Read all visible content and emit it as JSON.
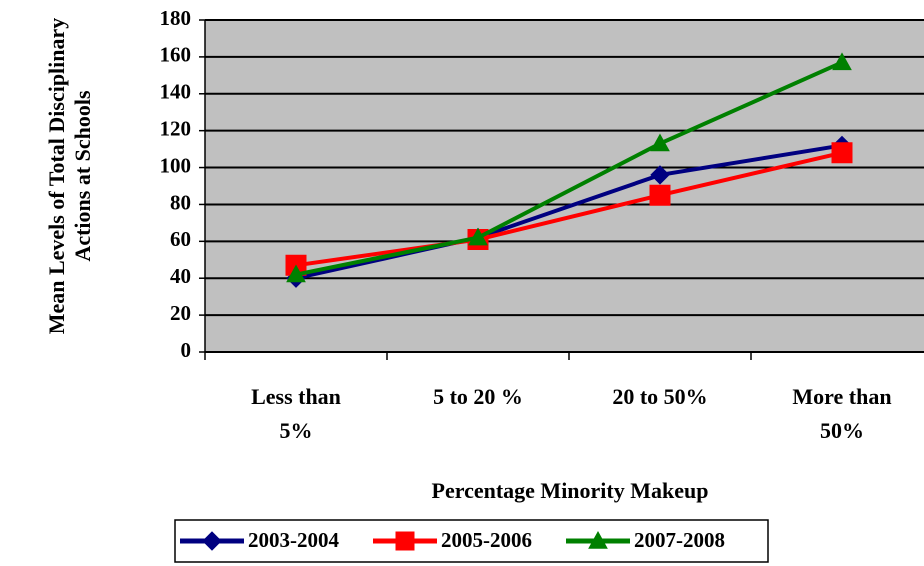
{
  "chart_data": {
    "type": "line",
    "x_label": "Percentage Minority Makeup",
    "y_label": "Mean Levels of Total Disciplinary Actions at Schools",
    "categories": [
      "Less than 5%",
      "5 to 20 %",
      "20 to 50%",
      "More than 50%"
    ],
    "series": [
      {
        "name": "2003-2004",
        "color": "#000080",
        "marker": "diamond",
        "values": [
          40,
          62,
          96,
          112
        ]
      },
      {
        "name": "2005-2006",
        "color": "#ff0000",
        "marker": "square",
        "values": [
          47,
          61,
          85,
          108
        ]
      },
      {
        "name": "2007-2008",
        "color": "#008000",
        "marker": "triangle",
        "values": [
          42,
          62,
          113,
          157
        ]
      }
    ],
    "ylim": [
      0,
      180
    ],
    "yticks": [
      0,
      20,
      40,
      60,
      80,
      100,
      120,
      140,
      160,
      180
    ],
    "grid": true,
    "legend": "bottom",
    "background": "#c0c0c0"
  }
}
